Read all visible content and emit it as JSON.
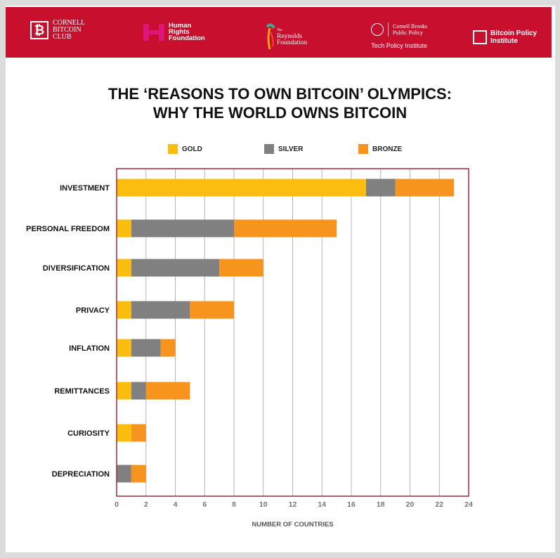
{
  "banner": {
    "logos": [
      {
        "name": "Cornell Bitcoin Club",
        "lines": [
          "CORNELL",
          "BITCOIN",
          "CLUB"
        ],
        "mark": "₿"
      },
      {
        "name": "Human Rights Foundation",
        "lines": [
          "Human",
          "Rights",
          "Foundation"
        ]
      },
      {
        "name": "The Reynolds Foundation",
        "lines": [
          "The",
          "Reynolds",
          "Foundation"
        ]
      },
      {
        "name": "Cornell Brooks Public Policy",
        "lines": [
          "Cornell Brooks",
          "Public Policy"
        ],
        "sub": "Tech Policy Institute"
      },
      {
        "name": "Bitcoin Policy Institute",
        "lines": [
          "Bitcoin Policy",
          "Institute"
        ]
      }
    ],
    "color": "#c8102e"
  },
  "chart_data": {
    "type": "bar",
    "orientation": "horizontal",
    "stacked": true,
    "title": "THE ‘REASONS TO OWN BITCOIN’ OLYMPICS:",
    "subtitle": "WHY THE WORLD OWNS BITCOIN",
    "xlabel": "NUMBER OF COUNTRIES",
    "ylabel": "",
    "xlim": [
      0,
      24
    ],
    "xticks": [
      0,
      2,
      4,
      6,
      8,
      10,
      12,
      14,
      16,
      18,
      20,
      22,
      24
    ],
    "grid": true,
    "legend_position": "top",
    "categories": [
      "INVESTMENT",
      "PERSONAL FREEDOM",
      "DIVERSIFICATION",
      "PRIVACY",
      "INFLATION",
      "REMITTANCES",
      "CURIOSITY",
      "DEPRECIATION"
    ],
    "series": [
      {
        "name": "GOLD",
        "color": "#fbbd0e",
        "values": [
          17,
          1,
          1,
          1,
          1,
          1,
          1,
          0
        ]
      },
      {
        "name": "SILVER",
        "color": "#808080",
        "values": [
          2,
          7,
          6,
          4,
          2,
          1,
          0,
          1
        ]
      },
      {
        "name": "BRONZE",
        "color": "#f7941d",
        "values": [
          4,
          7,
          3,
          3,
          1,
          3,
          1,
          1
        ]
      }
    ],
    "frame_color": "#a3283f"
  }
}
